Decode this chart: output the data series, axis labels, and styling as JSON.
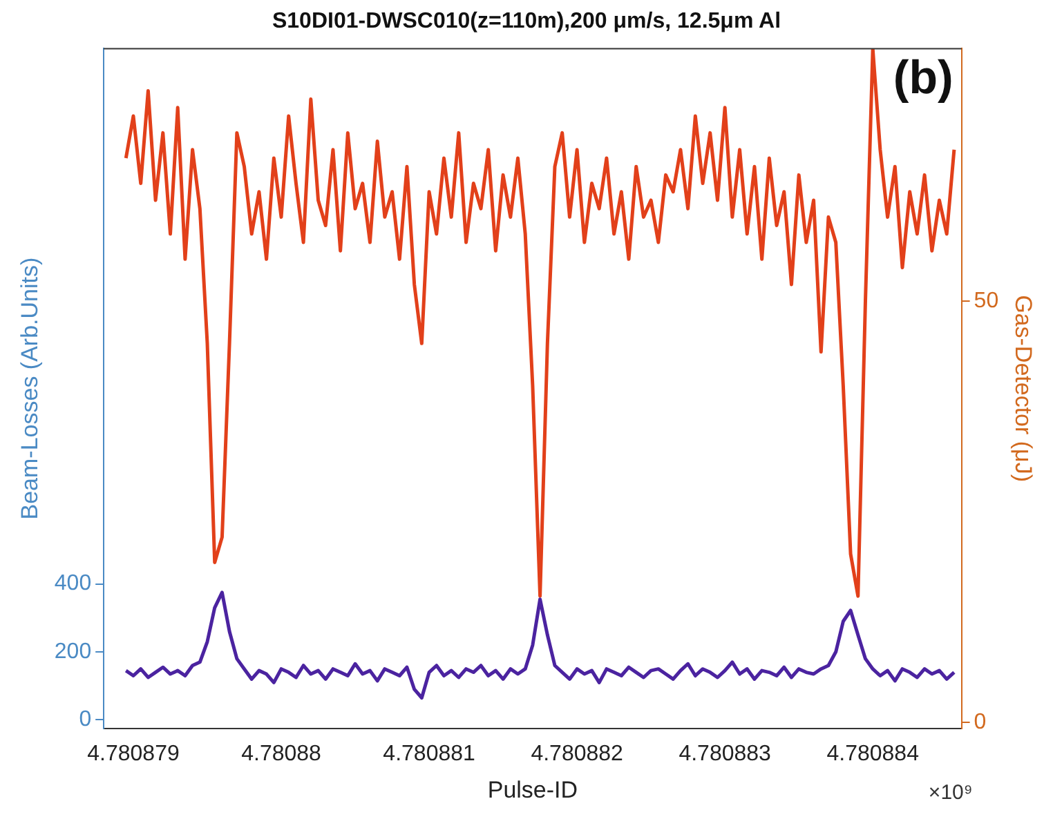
{
  "chart_data": {
    "type": "line",
    "title": "S10DI01-DWSC010(z=110m),200 μm/s, 12.5μm Al",
    "xlabel": "Pulse-ID",
    "ylabel": "Beam-Losses (Arb.Units)",
    "y2label": "Gas-Detector (μJ)",
    "annotations": [
      "(b)",
      "×10⁹"
    ],
    "x": [
      4.78087895,
      4.780879,
      4.78087905,
      4.7808791,
      4.78087915,
      4.7808792,
      4.78087925,
      4.7808793,
      4.78087935,
      4.7808794,
      4.78087945,
      4.7808795,
      4.78087955,
      4.7808796,
      4.78087965,
      4.7808797,
      4.78087975,
      4.7808798,
      4.78087985,
      4.7808799,
      4.78087995,
      4.78088,
      4.78088005,
      4.7808801,
      4.78088015,
      4.7808802,
      4.78088025,
      4.7808803,
      4.78088035,
      4.7808804,
      4.78088045,
      4.7808805,
      4.78088055,
      4.7808806,
      4.78088065,
      4.7808807,
      4.78088075,
      4.7808808,
      4.78088085,
      4.7808809,
      4.78088095,
      4.780881,
      4.78088105,
      4.7808811,
      4.78088115,
      4.7808812,
      4.78088125,
      4.7808813,
      4.78088135,
      4.7808814,
      4.78088145,
      4.7808815,
      4.78088155,
      4.7808816,
      4.78088165,
      4.7808817,
      4.78088175,
      4.7808818,
      4.78088185,
      4.7808819,
      4.78088195,
      4.780882,
      4.78088205,
      4.7808821,
      4.78088215,
      4.7808822,
      4.78088225,
      4.7808823,
      4.78088235,
      4.7808824,
      4.78088245,
      4.7808825,
      4.78088255,
      4.7808826,
      4.78088265,
      4.7808827,
      4.78088275,
      4.7808828,
      4.78088285,
      4.7808829,
      4.78088295,
      4.780883,
      4.78088305,
      4.7808831,
      4.78088315,
      4.7808832,
      4.78088325,
      4.7808833,
      4.78088335,
      4.7808834,
      4.78088345,
      4.7808835,
      4.78088355,
      4.7808836,
      4.78088365,
      4.7808837,
      4.78088375,
      4.7808838,
      4.78088385,
      4.7808839,
      4.78088395,
      4.780884,
      4.78088405,
      4.7808841,
      4.78088415,
      4.7808842,
      4.78088425,
      4.7808843,
      4.78088435,
      4.7808844,
      4.78088445,
      4.7808845,
      4.78088455
    ],
    "series": [
      {
        "color": "#4b23a0",
        "values": [
          145,
          130,
          150,
          125,
          140,
          155,
          135,
          145,
          130,
          160,
          170,
          230,
          330,
          375,
          260,
          180,
          150,
          120,
          145,
          135,
          110,
          150,
          140,
          125,
          160,
          135,
          145,
          120,
          150,
          140,
          130,
          165,
          135,
          145,
          115,
          150,
          140,
          130,
          155,
          90,
          65,
          140,
          160,
          130,
          145,
          125,
          150,
          140,
          160,
          130,
          145,
          120,
          150,
          135,
          150,
          220,
          355,
          250,
          160,
          140,
          120,
          150,
          135,
          145,
          110,
          150,
          140,
          130,
          155,
          140,
          125,
          145,
          150,
          135,
          120,
          145,
          165,
          130,
          150,
          140,
          125,
          145,
          170,
          135,
          150,
          120,
          145,
          140,
          130,
          155,
          125,
          150,
          140,
          135,
          150,
          160,
          200,
          290,
          322,
          250,
          180,
          150,
          130,
          145,
          115,
          150,
          140,
          125,
          150,
          135,
          145,
          120,
          140
        ]
      },
      {
        "color": "#e2401a",
        "axis": "y2",
        "values": [
          67,
          72,
          64,
          75,
          62,
          70,
          58,
          73,
          55,
          68,
          61,
          45,
          19,
          22,
          45,
          70,
          66,
          58,
          63,
          55,
          67,
          60,
          72,
          64,
          57,
          74,
          62,
          59,
          68,
          56,
          70,
          61,
          64,
          57,
          69,
          60,
          63,
          55,
          66,
          52,
          45,
          63,
          58,
          67,
          60,
          70,
          57,
          64,
          61,
          68,
          56,
          65,
          60,
          67,
          58,
          40,
          15,
          45,
          66,
          70,
          60,
          68,
          57,
          64,
          61,
          67,
          58,
          63,
          55,
          66,
          60,
          62,
          57,
          65,
          63,
          68,
          61,
          72,
          64,
          70,
          62,
          73,
          60,
          68,
          58,
          66,
          55,
          67,
          59,
          63,
          52,
          65,
          57,
          62,
          44,
          60,
          57,
          40,
          20,
          15,
          50,
          80,
          68,
          60,
          66,
          54,
          63,
          58,
          65,
          56,
          62,
          58,
          68
        ]
      }
    ],
    "xlim": [
      4.7808788,
      4.7808846
    ],
    "xticks": [
      4.780879,
      4.78088,
      4.780881,
      4.780882,
      4.780883,
      4.780884
    ],
    "ylim": [
      -25,
      1975
    ],
    "yticks": [
      0,
      200,
      400
    ],
    "y2lim": [
      -0.7,
      80
    ],
    "y2ticks": [
      0,
      50
    ],
    "grid": false,
    "legend": false,
    "marker": "none",
    "line_style": "solid"
  }
}
